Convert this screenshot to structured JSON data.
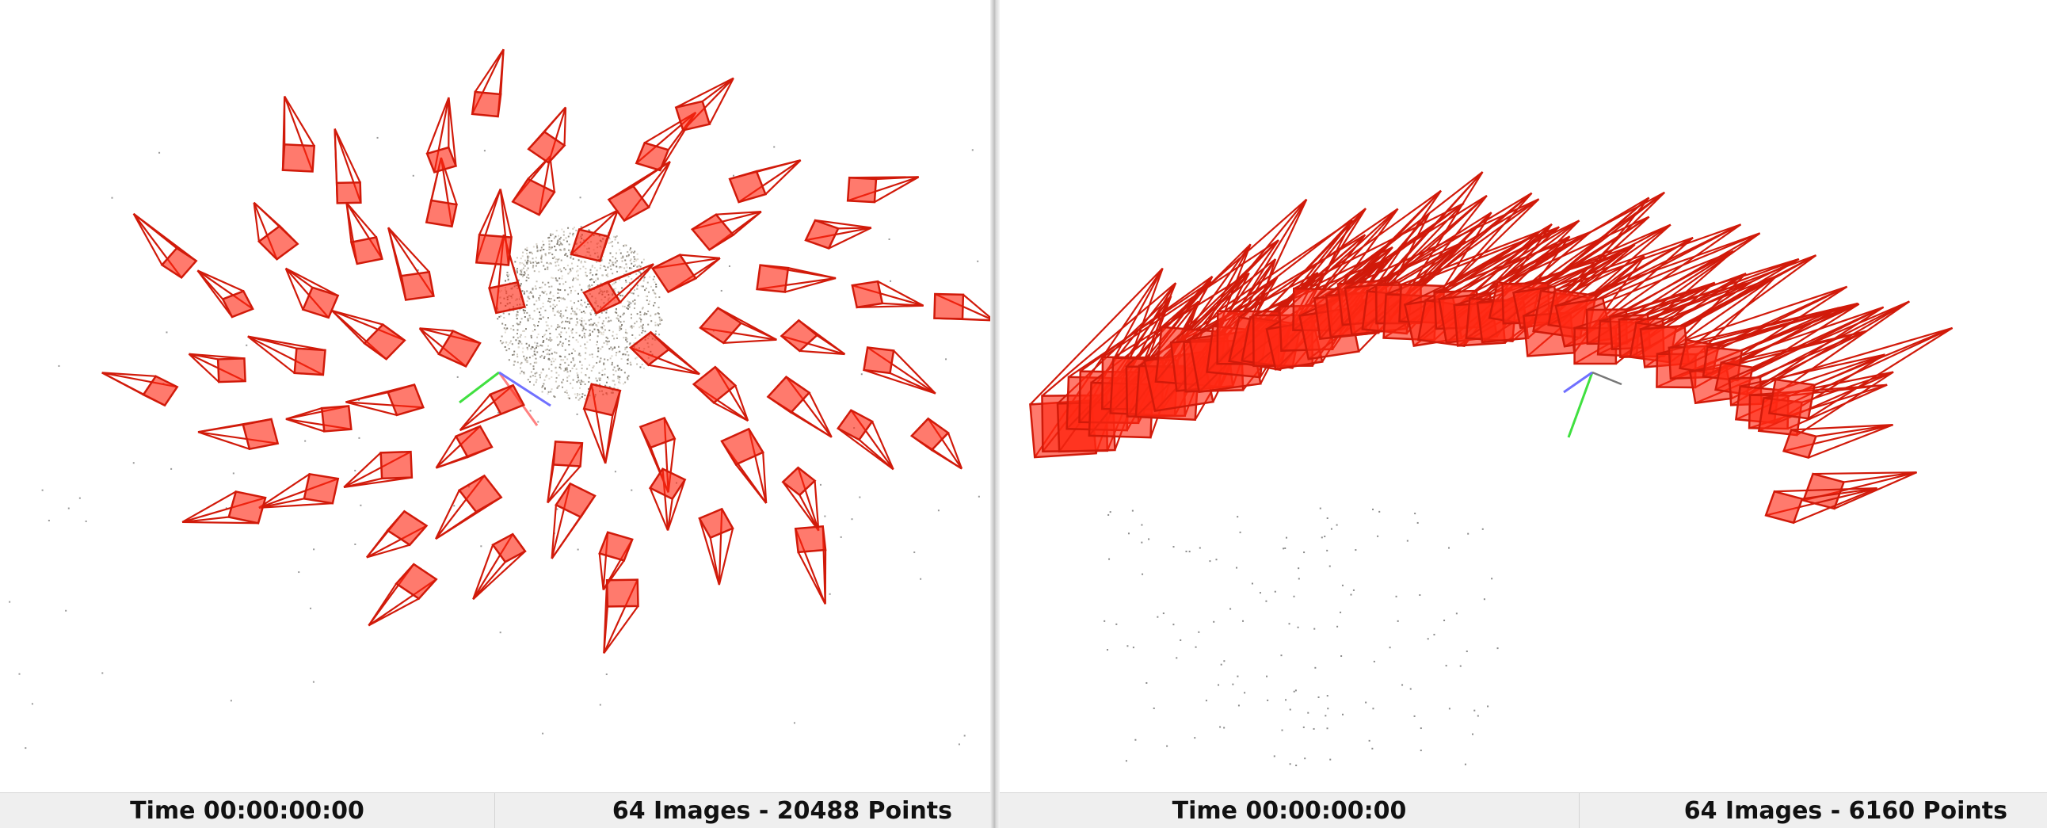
{
  "left_viewer": {
    "status": {
      "time": "Time 00:00:00:00",
      "summary": "64 Images - 20488 Points"
    }
  },
  "right_viewer": {
    "status": {
      "time": "Time 00:00:00:00",
      "summary": "64 Images - 6160 Points"
    }
  },
  "colors": {
    "camera_fill": "#ff3a22",
    "camera_stroke": "#d11a0a",
    "axis_x": "#ff8080",
    "axis_y": "#40e040",
    "axis_z": "#7070ff",
    "point_cloud": "#888888",
    "status_bar_bg": "#efefef"
  }
}
